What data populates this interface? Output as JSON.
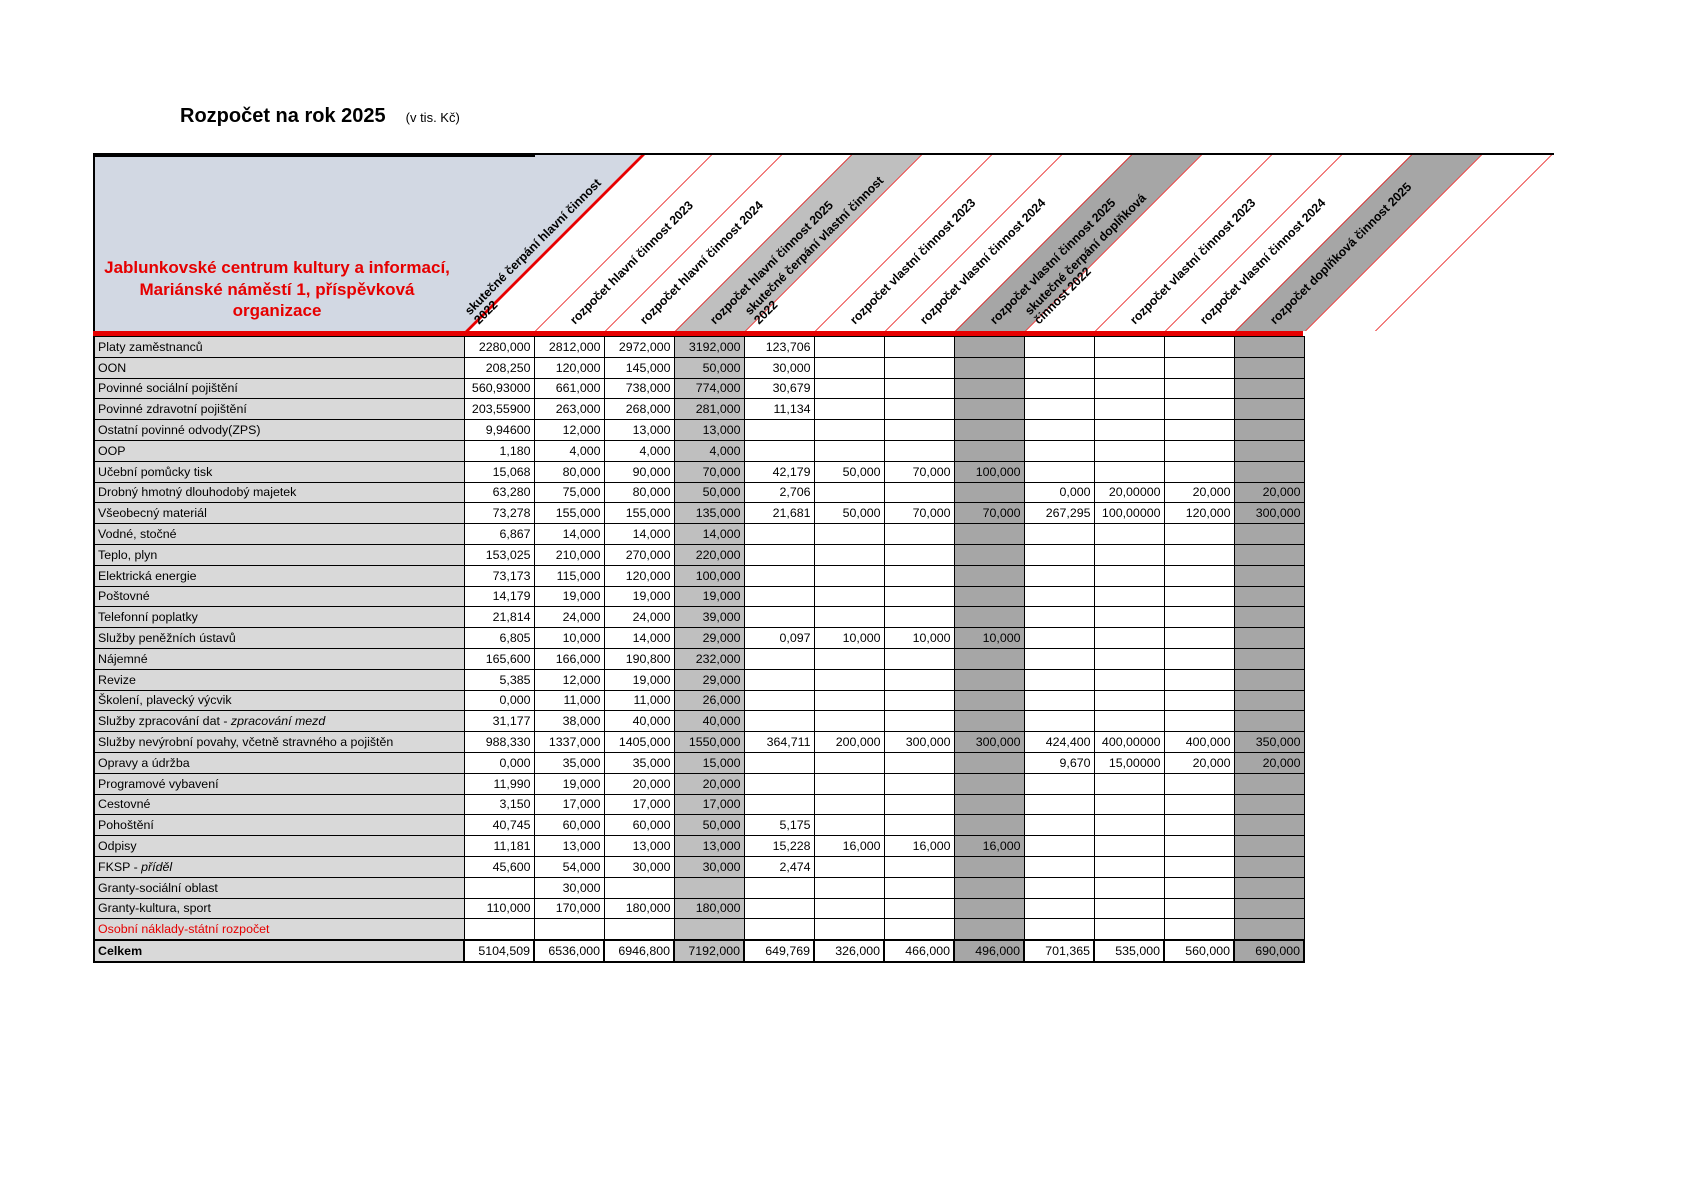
{
  "title": "Rozpočet na rok 2025",
  "title_suffix": "(v tis. Kč)",
  "org_name": "Jablunkovské centrum kultury a informací, Mariánské náměstí 1, příspěvková organizace",
  "colors": {
    "red": "#e60000",
    "header_blue": "#d2d8e3",
    "row_label_gray": "#d9d9d9",
    "highlight_light_gray": "#bfbfbf",
    "highlight_dark_gray": "#a6a6a6"
  },
  "columns": [
    {
      "label": "skutečné čerpání hlavní činnost 2022",
      "shade": "white"
    },
    {
      "label": "rozpočet hlavní činnost 2023",
      "shade": "white"
    },
    {
      "label": "rozpočet hlavní činnost 2024",
      "shade": "white"
    },
    {
      "label": "rozpočet hlavní činnost 2025",
      "shade": "light"
    },
    {
      "label": "skutečné čerpání vlastní činnost 2022",
      "shade": "white"
    },
    {
      "label": "rozpočet vlastní činnost 2023",
      "shade": "white"
    },
    {
      "label": "rozpočet vlastní činnost 2024",
      "shade": "white"
    },
    {
      "label": "rozpočet vlastní činnost 2025",
      "shade": "dark"
    },
    {
      "label": "skutečné čerpání doplňková činnost 2022",
      "shade": "white"
    },
    {
      "label": "rozpočet vlastní činnost 2023",
      "shade": "white"
    },
    {
      "label": "rozpočet vlastní činnost 2024",
      "shade": "white"
    },
    {
      "label": "rozpočet doplňková činnost 2025",
      "shade": "dark"
    }
  ],
  "rows": [
    {
      "label": "Platy zaměstnanců",
      "values": [
        "2280,000",
        "2812,000",
        "2972,000",
        "3192,000",
        "123,706",
        "",
        "",
        "",
        "",
        "",
        "",
        ""
      ]
    },
    {
      "label": "OON",
      "values": [
        "208,250",
        "120,000",
        "145,000",
        "50,000",
        "30,000",
        "",
        "",
        "",
        "",
        "",
        "",
        ""
      ]
    },
    {
      "label": "Povinné sociální pojištění",
      "values": [
        "560,93000",
        "661,000",
        "738,000",
        "774,000",
        "30,679",
        "",
        "",
        "",
        "",
        "",
        "",
        ""
      ]
    },
    {
      "label": "Povinné zdravotní pojištění",
      "values": [
        "203,55900",
        "263,000",
        "268,000",
        "281,000",
        "11,134",
        "",
        "",
        "",
        "",
        "",
        "",
        ""
      ]
    },
    {
      "label": "Ostatní povinné odvody(ZPS)",
      "values": [
        "9,94600",
        "12,000",
        "13,000",
        "13,000",
        "",
        "",
        "",
        "",
        "",
        "",
        "",
        ""
      ]
    },
    {
      "label": "OOP",
      "values": [
        "1,180",
        "4,000",
        "4,000",
        "4,000",
        "",
        "",
        "",
        "",
        "",
        "",
        "",
        ""
      ]
    },
    {
      "label": "Učební pomůcky tisk",
      "values": [
        "15,068",
        "80,000",
        "90,000",
        "70,000",
        "42,179",
        "50,000",
        "70,000",
        "100,000",
        "",
        "",
        "",
        ""
      ]
    },
    {
      "label": "Drobný hmotný dlouhodobý majetek",
      "values": [
        "63,280",
        "75,000",
        "80,000",
        "50,000",
        "2,706",
        "",
        "",
        "",
        "0,000",
        "20,00000",
        "20,000",
        "20,000"
      ]
    },
    {
      "label": "Všeobecný materiál",
      "values": [
        "73,278",
        "155,000",
        "155,000",
        "135,000",
        "21,681",
        "50,000",
        "70,000",
        "70,000",
        "267,295",
        "100,00000",
        "120,000",
        "300,000"
      ]
    },
    {
      "label": "Vodné, stočné",
      "values": [
        "6,867",
        "14,000",
        "14,000",
        "14,000",
        "",
        "",
        "",
        "",
        "",
        "",
        "",
        ""
      ]
    },
    {
      "label": "Teplo, plyn",
      "values": [
        "153,025",
        "210,000",
        "270,000",
        "220,000",
        "",
        "",
        "",
        "",
        "",
        "",
        "",
        ""
      ]
    },
    {
      "label": "Elektrická energie",
      "values": [
        "73,173",
        "115,000",
        "120,000",
        "100,000",
        "",
        "",
        "",
        "",
        "",
        "",
        "",
        ""
      ]
    },
    {
      "label": "Poštovné",
      "values": [
        "14,179",
        "19,000",
        "19,000",
        "19,000",
        "",
        "",
        "",
        "",
        "",
        "",
        "",
        ""
      ]
    },
    {
      "label": "Telefonní poplatky",
      "values": [
        "21,814",
        "24,000",
        "24,000",
        "39,000",
        "",
        "",
        "",
        "",
        "",
        "",
        "",
        ""
      ]
    },
    {
      "label": "Služby peněžních ústavů",
      "values": [
        "6,805",
        "10,000",
        "14,000",
        "29,000",
        "0,097",
        "10,000",
        "10,000",
        "10,000",
        "",
        "",
        "",
        ""
      ]
    },
    {
      "label": "Nájemné",
      "values": [
        "165,600",
        "166,000",
        "190,800",
        "232,000",
        "",
        "",
        "",
        "",
        "",
        "",
        "",
        ""
      ]
    },
    {
      "label": "Revize",
      "values": [
        "5,385",
        "12,000",
        "19,000",
        "29,000",
        "",
        "",
        "",
        "",
        "",
        "",
        "",
        ""
      ]
    },
    {
      "label": "Školení, plavecký výcvik",
      "values": [
        "0,000",
        "11,000",
        "11,000",
        "26,000",
        "",
        "",
        "",
        "",
        "",
        "",
        "",
        ""
      ]
    },
    {
      "label": "Služby zpracování dat - ",
      "label_italic": "zpracování mezd",
      "values": [
        "31,177",
        "38,000",
        "40,000",
        "40,000",
        "",
        "",
        "",
        "",
        "",
        "",
        "",
        ""
      ]
    },
    {
      "label": "Služby nevýrobní povahy, včetně stravného a pojištěn",
      "values": [
        "988,330",
        "1337,000",
        "1405,000",
        "1550,000",
        "364,711",
        "200,000",
        "300,000",
        "300,000",
        "424,400",
        "400,00000",
        "400,000",
        "350,000"
      ]
    },
    {
      "label": "Opravy a údržba",
      "values": [
        "0,000",
        "35,000",
        "35,000",
        "15,000",
        "",
        "",
        "",
        "",
        "9,670",
        "15,00000",
        "20,000",
        "20,000"
      ]
    },
    {
      "label": "Programové vybavení",
      "values": [
        "11,990",
        "19,000",
        "20,000",
        "20,000",
        "",
        "",
        "",
        "",
        "",
        "",
        "",
        ""
      ]
    },
    {
      "label": "Cestovné",
      "values": [
        "3,150",
        "17,000",
        "17,000",
        "17,000",
        "",
        "",
        "",
        "",
        "",
        "",
        "",
        ""
      ]
    },
    {
      "label": "Pohoštění",
      "values": [
        "40,745",
        "60,000",
        "60,000",
        "50,000",
        "5,175",
        "",
        "",
        "",
        "",
        "",
        "",
        ""
      ]
    },
    {
      "label": "Odpisy",
      "values": [
        "11,181",
        "13,000",
        "13,000",
        "13,000",
        "15,228",
        "16,000",
        "16,000",
        "16,000",
        "",
        "",
        "",
        ""
      ]
    },
    {
      "label": "FKSP - ",
      "label_italic": "příděl",
      "values": [
        "45,600",
        "54,000",
        "30,000",
        "30,000",
        "2,474",
        "",
        "",
        "",
        "",
        "",
        "",
        ""
      ]
    },
    {
      "label": "Granty-sociální oblast",
      "values": [
        "",
        "30,000",
        "",
        "",
        "",
        "",
        "",
        "",
        "",
        "",
        "",
        ""
      ]
    },
    {
      "label": "Granty-kultura, sport",
      "values": [
        "110,000",
        "170,000",
        "180,000",
        "180,000",
        "",
        "",
        "",
        "",
        "",
        "",
        "",
        ""
      ]
    },
    {
      "label": "Osobní náklady-státní rozpočet",
      "red_text": true,
      "values": [
        "",
        "",
        "",
        "",
        "",
        "",
        "",
        "",
        "",
        "",
        "",
        ""
      ]
    }
  ],
  "total_row": {
    "label": "Celkem",
    "values": [
      "5104,509",
      "6536,000",
      "6946,800",
      "7192,000",
      "649,769",
      "326,000",
      "466,000",
      "496,000",
      "701,365",
      "535,000",
      "560,000",
      "690,000"
    ]
  }
}
